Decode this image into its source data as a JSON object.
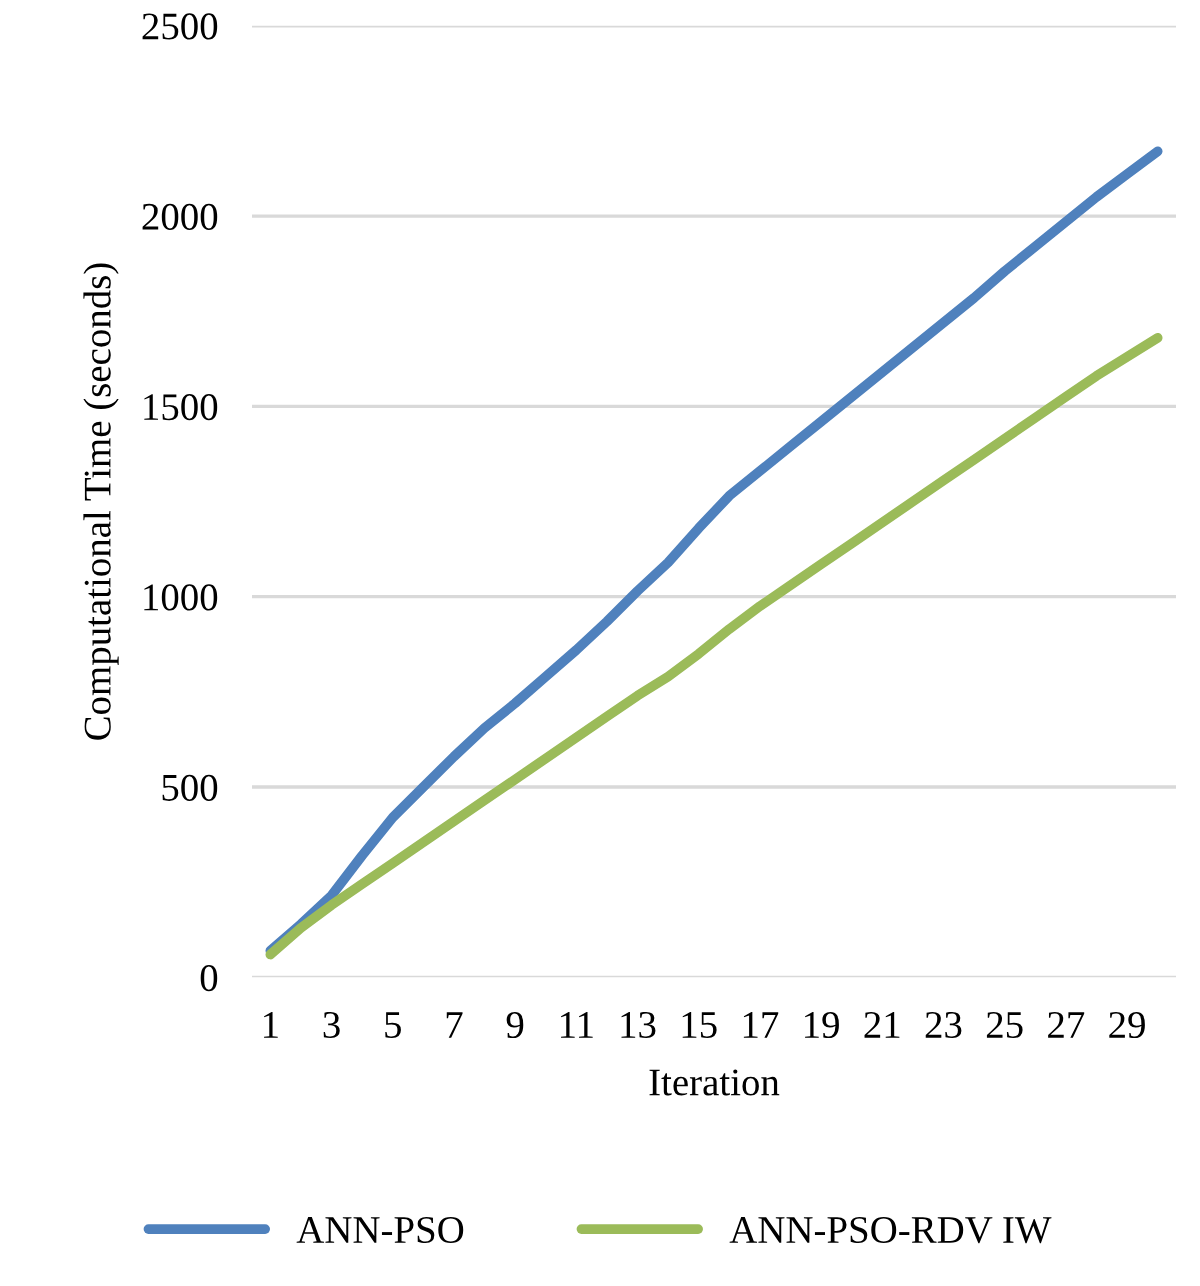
{
  "chart_data": {
    "type": "line",
    "xlabel": "Iteration",
    "ylabel": "Computational Time (seconds)",
    "categories": [
      "1",
      null,
      "3",
      null,
      "5",
      null,
      "7",
      null,
      "9",
      null,
      "11",
      null,
      "13",
      null,
      "15",
      null,
      "17",
      null,
      "19",
      null,
      "21",
      null,
      "23",
      null,
      "25",
      null,
      "27",
      null,
      "29",
      null
    ],
    "series": [
      {
        "name": "ANN-PSO",
        "color": "#4f81bd",
        "values": [
          70,
          140,
          215,
          320,
          420,
          500,
          580,
          655,
          720,
          790,
          860,
          935,
          1015,
          1090,
          1180,
          1265,
          1330,
          1395,
          1460,
          1525,
          1590,
          1655,
          1720,
          1785,
          1855,
          1920,
          1985,
          2050,
          2110,
          2170
        ]
      },
      {
        "name": "ANN-PSO-RDV IW",
        "color": "#9bbb59",
        "values": [
          60,
          130,
          190,
          245,
          300,
          355,
          410,
          465,
          520,
          575,
          630,
          685,
          740,
          790,
          850,
          915,
          975,
          1030,
          1085,
          1140,
          1195,
          1250,
          1305,
          1360,
          1415,
          1470,
          1525,
          1580,
          1630,
          1680
        ]
      }
    ],
    "ylim": [
      0,
      2500
    ],
    "yticks": [
      0,
      500,
      1000,
      1500,
      2000,
      2500
    ],
    "grid": "y",
    "legend": "bottom",
    "marker": "none",
    "line_style": "solid"
  }
}
